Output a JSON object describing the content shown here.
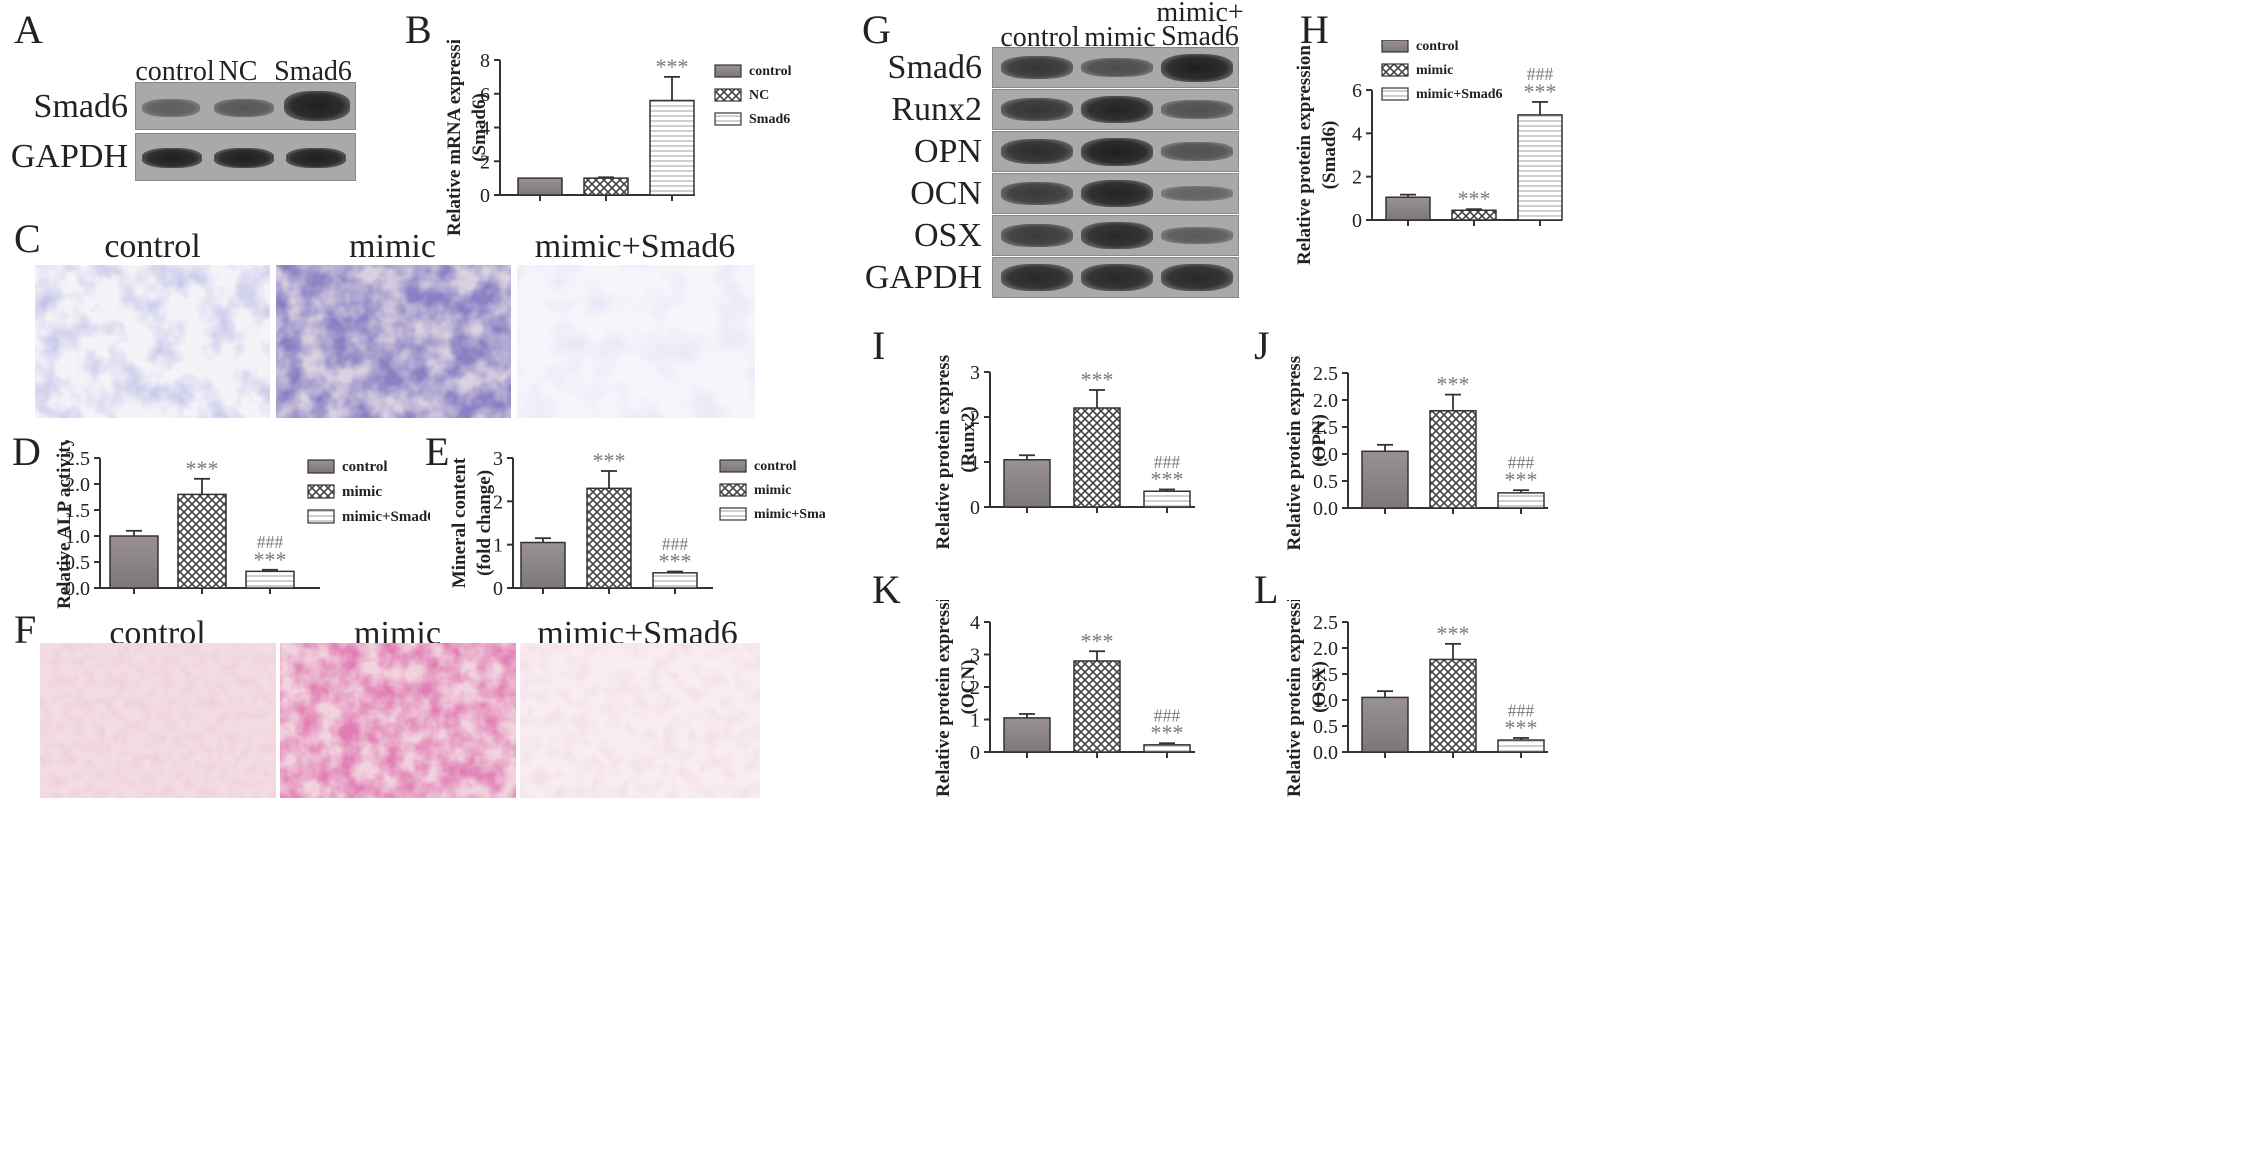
{
  "panel_letters": [
    "A",
    "B",
    "C",
    "D",
    "E",
    "F",
    "G",
    "H",
    "I",
    "J",
    "K",
    "L"
  ],
  "blot_A": {
    "lanes": [
      "control",
      "NC",
      "Smad6"
    ],
    "rows": [
      {
        "label": "Smad6",
        "band": [
          0.55,
          0.6,
          1.0
        ]
      },
      {
        "label": "GAPDH",
        "band": [
          0.85,
          0.85,
          0.85
        ]
      }
    ]
  },
  "blot_G": {
    "lanes": [
      "control",
      "mimic",
      "mimic+ Smad6"
    ],
    "lane3_line1": "mimic+",
    "lane3_line2": "Smad6",
    "rows": [
      {
        "label": "Smad6",
        "band": [
          0.75,
          0.5,
          1.0
        ]
      },
      {
        "label": "Runx2",
        "band": [
          0.75,
          0.95,
          0.45
        ]
      },
      {
        "label": "OPN",
        "band": [
          0.85,
          1.0,
          0.45
        ]
      },
      {
        "label": "OCN",
        "band": [
          0.7,
          0.95,
          0.25
        ]
      },
      {
        "label": "OSX",
        "band": [
          0.7,
          0.9,
          0.35
        ]
      },
      {
        "label": "GAPDH",
        "band": [
          0.9,
          0.9,
          0.9
        ]
      }
    ]
  },
  "micrograph_C": {
    "titles": [
      "control",
      "mimic",
      "mimic+Smad6"
    ],
    "stain_color": "#4a4aa0"
  },
  "micrograph_F": {
    "titles": [
      "control",
      "mimic",
      "mimic+Smad6"
    ],
    "stain_color": "#c0407a"
  },
  "legend_B": [
    "control",
    "NC",
    "Smad6"
  ],
  "legend_groups": [
    "control",
    "mimic",
    "mimic+Smad6"
  ],
  "chart_data": [
    {
      "id": "B",
      "type": "bar",
      "categories": [
        "control",
        "NC",
        "Smad6"
      ],
      "values": [
        1.0,
        1.0,
        5.6
      ],
      "errors": [
        0,
        0.05,
        1.4
      ],
      "ylabel_line1": "Relative mRNA expression",
      "ylabel_line2": "(Smad6)",
      "ylim": [
        0,
        8
      ],
      "yticks": [
        "0",
        "2",
        "4",
        "6",
        "8"
      ],
      "annotations": [
        "",
        "",
        "***"
      ],
      "annotations2": [
        "",
        "",
        ""
      ]
    },
    {
      "id": "D",
      "type": "bar",
      "categories": [
        "control",
        "mimic",
        "mimic+Smad6"
      ],
      "values": [
        1.0,
        1.8,
        0.32
      ],
      "errors": [
        0.1,
        0.3,
        0.03
      ],
      "ylabel_line1": "Relative ALP activity",
      "ylabel_line2": "",
      "ylim": [
        0,
        2.5
      ],
      "yticks": [
        "0.0",
        "0.5",
        "1.0",
        "1.5",
        "2.0",
        "2.5"
      ],
      "annotations": [
        "",
        "***",
        "***"
      ],
      "annotations2": [
        "",
        "",
        "###"
      ]
    },
    {
      "id": "E",
      "type": "bar",
      "categories": [
        "control",
        "mimic",
        "mimic+Smad6"
      ],
      "values": [
        1.05,
        2.3,
        0.35
      ],
      "errors": [
        0.1,
        0.4,
        0.03
      ],
      "ylabel_line1": "Mineral content",
      "ylabel_line2": "(fold change)",
      "ylim": [
        0,
        3
      ],
      "yticks": [
        "0",
        "1",
        "2",
        "3"
      ],
      "annotations": [
        "",
        "***",
        "***"
      ],
      "annotations2": [
        "",
        "",
        "###"
      ]
    },
    {
      "id": "H",
      "type": "bar",
      "categories": [
        "control",
        "mimic",
        "mimic+Smad6"
      ],
      "values": [
        1.05,
        0.45,
        4.85
      ],
      "errors": [
        0.12,
        0.05,
        0.6
      ],
      "ylabel_line1": "Relative protein expression",
      "ylabel_line2": "(Smad6)",
      "ylim": [
        0,
        6
      ],
      "yticks": [
        "0",
        "2",
        "4",
        "6"
      ],
      "annotations": [
        "",
        "***",
        "***"
      ],
      "annotations2": [
        "",
        "",
        "###"
      ]
    },
    {
      "id": "I",
      "type": "bar",
      "categories": [
        "control",
        "mimic",
        "mimic+Smad6"
      ],
      "values": [
        1.05,
        2.2,
        0.35
      ],
      "errors": [
        0.1,
        0.4,
        0.04
      ],
      "ylabel_line1": "Relative protein expression",
      "ylabel_line2": "(Runx2)",
      "ylim": [
        0,
        3
      ],
      "yticks": [
        "0",
        "1",
        "2",
        "3"
      ],
      "annotations": [
        "",
        "***",
        "***"
      ],
      "annotations2": [
        "",
        "",
        "###"
      ]
    },
    {
      "id": "J",
      "type": "bar",
      "categories": [
        "control",
        "mimic",
        "mimic+Smad6"
      ],
      "values": [
        1.05,
        1.8,
        0.28
      ],
      "errors": [
        0.12,
        0.3,
        0.05
      ],
      "ylabel_line1": "Relative protein expression",
      "ylabel_line2": "(OPN)",
      "ylim": [
        0,
        2.5
      ],
      "yticks": [
        "0.0",
        "0.5",
        "1.0",
        "1.5",
        "2.0",
        "2.5"
      ],
      "annotations": [
        "",
        "***",
        "***"
      ],
      "annotations2": [
        "",
        "",
        "###"
      ]
    },
    {
      "id": "K",
      "type": "bar",
      "categories": [
        "control",
        "mimic",
        "mimic+Smad6"
      ],
      "values": [
        1.05,
        2.8,
        0.22
      ],
      "errors": [
        0.12,
        0.3,
        0.05
      ],
      "ylabel_line1": "Relative protein expression",
      "ylabel_line2": "(OCN)",
      "ylim": [
        0,
        4
      ],
      "yticks": [
        "0",
        "1",
        "2",
        "3",
        "4"
      ],
      "annotations": [
        "",
        "***",
        "***"
      ],
      "annotations2": [
        "",
        "",
        "###"
      ]
    },
    {
      "id": "L",
      "type": "bar",
      "categories": [
        "control",
        "mimic",
        "mimic+Smad6"
      ],
      "values": [
        1.05,
        1.78,
        0.23
      ],
      "errors": [
        0.12,
        0.3,
        0.04
      ],
      "ylabel_line1": "Relative protein expression",
      "ylabel_line2": "(OSX)",
      "ylim": [
        0,
        2.5
      ],
      "yticks": [
        "0.0",
        "0.5",
        "1.0",
        "1.5",
        "2.0",
        "2.5"
      ],
      "annotations": [
        "",
        "***",
        "***"
      ],
      "annotations2": [
        "",
        "",
        "###"
      ]
    }
  ],
  "colors": {
    "bar_solid": "#8c8585",
    "bar_hatch": "#444444",
    "bar_stripe": "#cfcfcf",
    "annotation": "#7a7a7a"
  }
}
